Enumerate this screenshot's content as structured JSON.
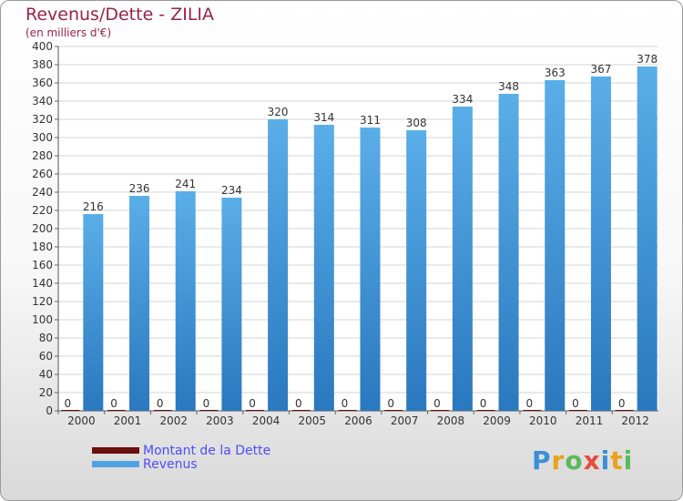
{
  "header": {
    "title": "Revenus/Dette - ZILIA",
    "subtitle": "(en milliers d'€)"
  },
  "chart_data": {
    "type": "bar",
    "categories": [
      "2000",
      "2001",
      "2002",
      "2003",
      "2004",
      "2005",
      "2006",
      "2007",
      "2008",
      "2009",
      "2010",
      "2011",
      "2012"
    ],
    "series": [
      {
        "name": "Montant de la Dette",
        "values": [
          0,
          0,
          0,
          0,
          0,
          0,
          0,
          0,
          0,
          0,
          0,
          0,
          0
        ],
        "color": "#6b0f0f"
      },
      {
        "name": "Revenus",
        "values": [
          216,
          236,
          241,
          234,
          320,
          314,
          311,
          308,
          334,
          348,
          363,
          367,
          378
        ],
        "color": "#4fa3e3"
      }
    ],
    "ylim": [
      0,
      400
    ],
    "yticks": [
      0,
      20,
      40,
      60,
      80,
      100,
      120,
      140,
      160,
      180,
      200,
      220,
      240,
      260,
      280,
      300,
      320,
      340,
      360,
      380,
      400
    ],
    "grid": true,
    "legend_position": "bottom-left"
  },
  "logo": {
    "letters": [
      "P",
      "r",
      "o",
      "x",
      "i",
      "t",
      "i"
    ],
    "colors": [
      "#3a8fd9",
      "#e8a21b",
      "#5cb85c",
      "#e84c3d",
      "#3a8fd9",
      "#e8a21b",
      "#5cb85c"
    ]
  }
}
